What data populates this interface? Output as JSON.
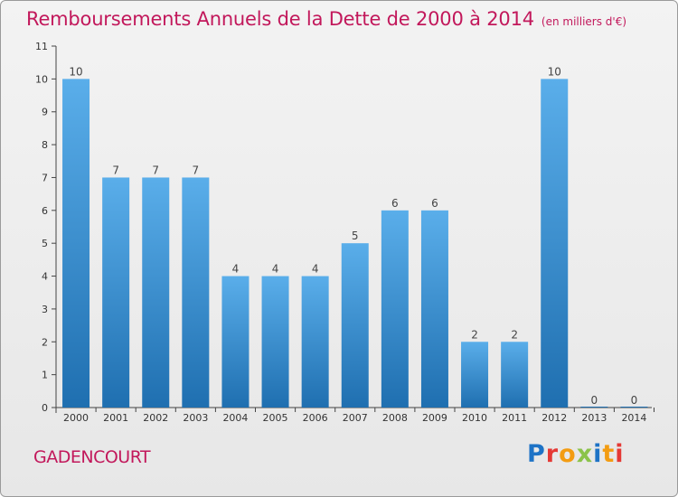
{
  "title": "Remboursements Annuels de la Dette de 2000 à 2014",
  "unit_note": "(en milliers d'€)",
  "commune": "GADENCOURT",
  "brand": "Proxiti",
  "colors": {
    "title": "#c2185b",
    "bar_light": "#5aaeea",
    "bar_dark": "#1f6fb0",
    "brand_letters": [
      "#1e73c6",
      "#e53935",
      "#f39c12",
      "#8bc34a",
      "#1e73c6",
      "#f39c12",
      "#e53935"
    ]
  },
  "chart_data": {
    "type": "bar",
    "categories": [
      "2000",
      "2001",
      "2002",
      "2003",
      "2004",
      "2005",
      "2006",
      "2007",
      "2008",
      "2009",
      "2010",
      "2011",
      "2012",
      "2013",
      "2014"
    ],
    "values": [
      10,
      7,
      7,
      7,
      4,
      4,
      4,
      5,
      6,
      6,
      2,
      2,
      10,
      0,
      0
    ],
    "data_labels": [
      "10",
      "7",
      "7",
      "7",
      "4",
      "4",
      "4",
      "5",
      "6",
      "6",
      "2",
      "2",
      "10",
      "0",
      "0"
    ],
    "yticks": [
      0,
      1,
      2,
      3,
      4,
      5,
      6,
      7,
      8,
      9,
      10,
      11
    ],
    "ylim": [
      0,
      11
    ],
    "xlabel": "",
    "ylabel": "",
    "grid": false,
    "legend": "none"
  }
}
